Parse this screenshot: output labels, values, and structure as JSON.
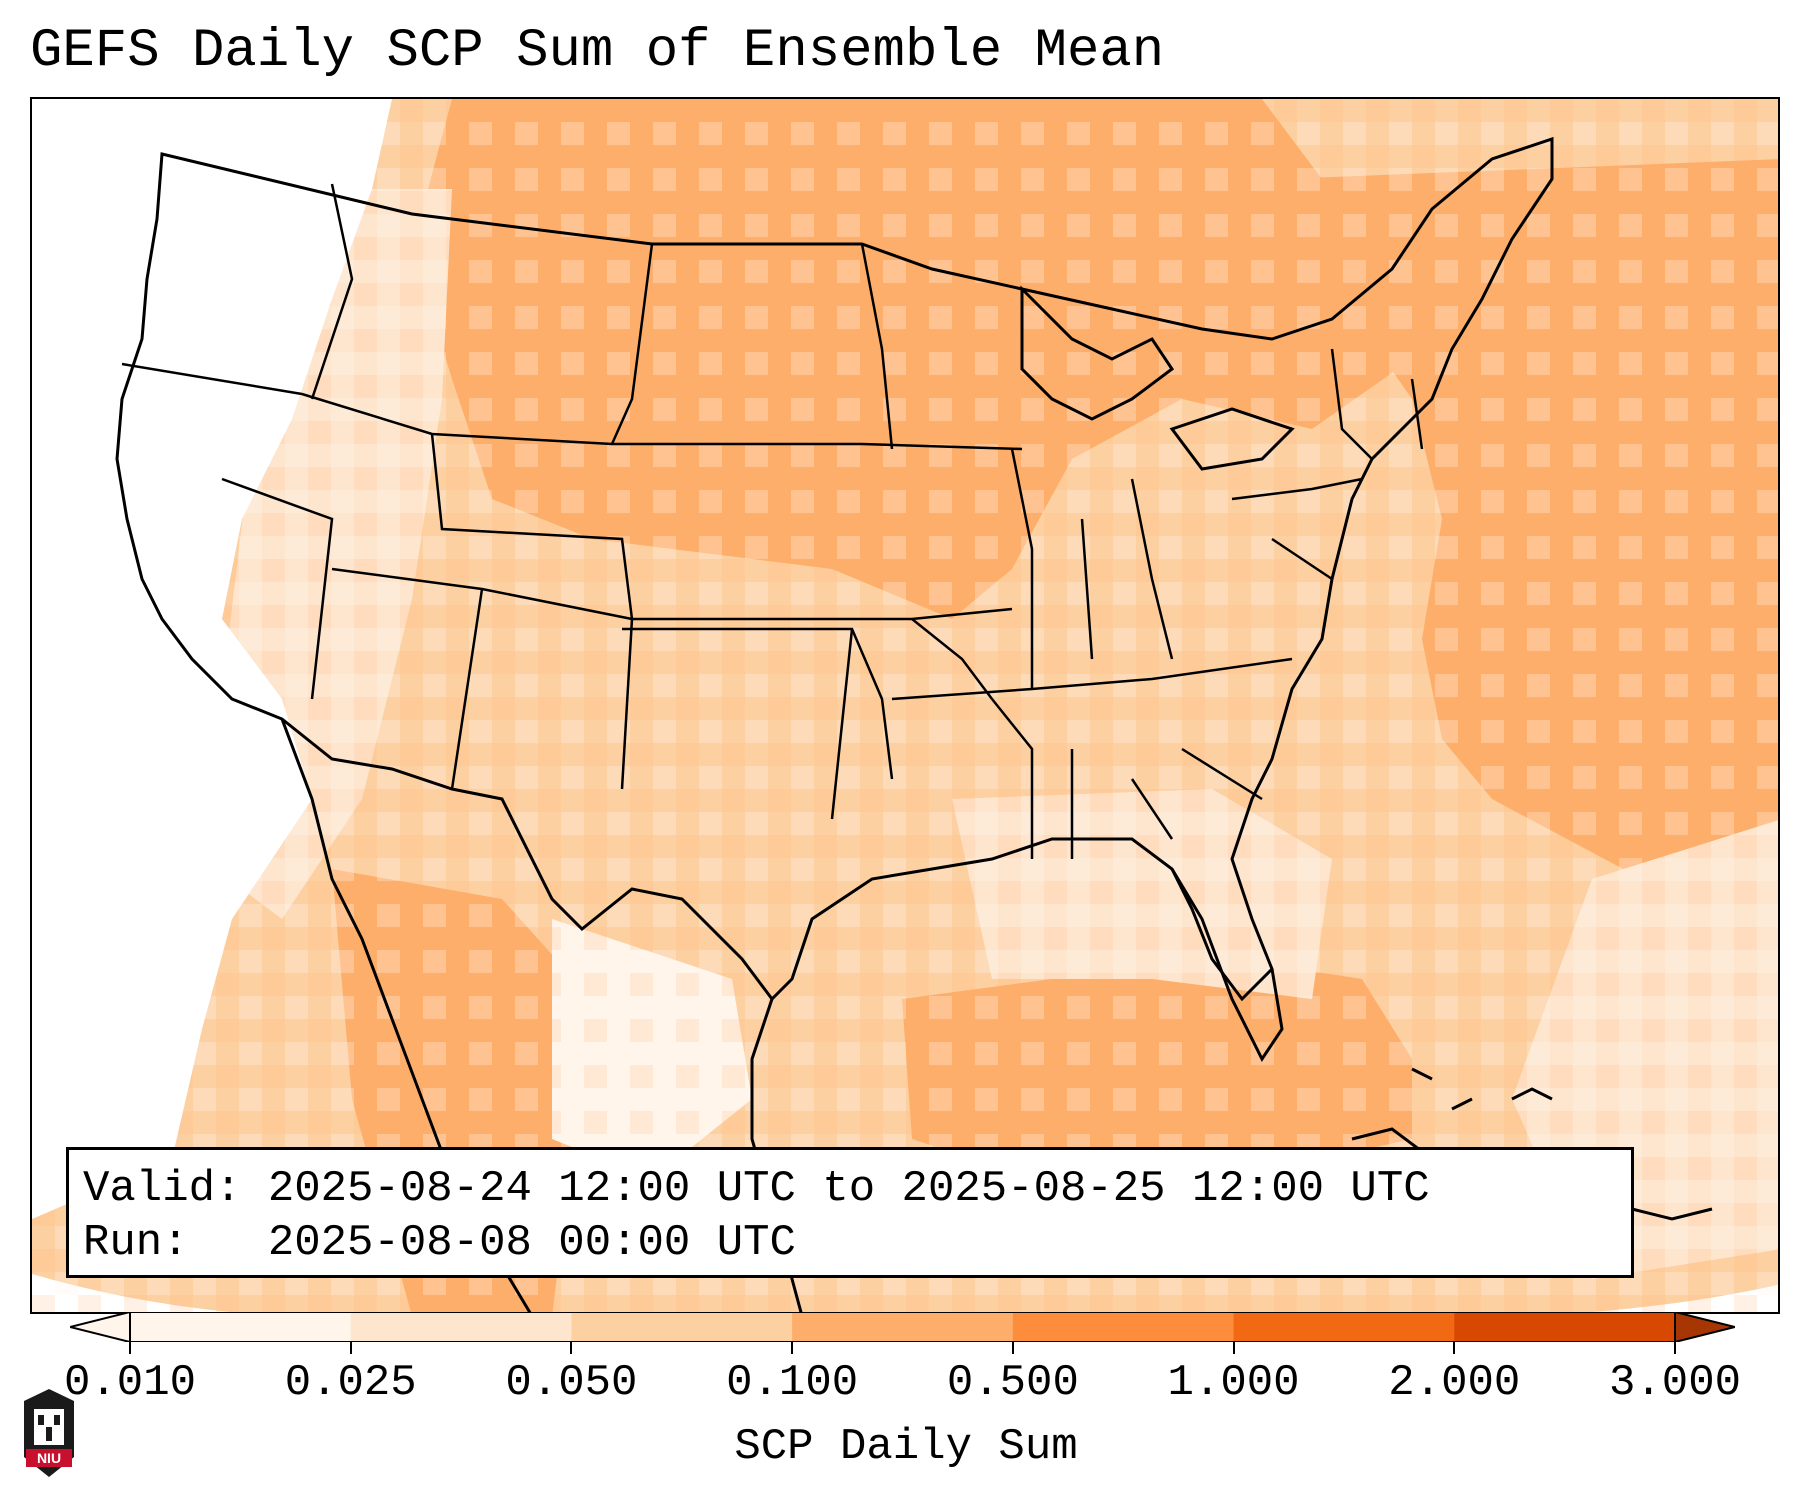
{
  "title": "GEFS Daily SCP Sum of Ensemble Mean",
  "info": {
    "valid_label": "Valid:",
    "valid_value": "2025-08-24 12:00 UTC to 2025-08-25 12:00 UTC",
    "run_label": "Run:",
    "run_value": "2025-08-08 00:00 UTC"
  },
  "colorbar": {
    "label": "SCP Daily Sum",
    "ticks": [
      "0.010",
      "0.025",
      "0.050",
      "0.100",
      "0.500",
      "1.000",
      "2.000",
      "3.000"
    ],
    "colors": [
      "#fff5eb",
      "#fee6ce",
      "#fdd0a2",
      "#fdae6b",
      "#fd8d3c",
      "#f16913",
      "#d94801",
      "#a63603"
    ],
    "extend": "both"
  },
  "logo": {
    "text": "NIU"
  },
  "colors": {
    "border": "#000000",
    "ocean_fill": "#fdae6b",
    "land_light": "#fee6ce"
  }
}
